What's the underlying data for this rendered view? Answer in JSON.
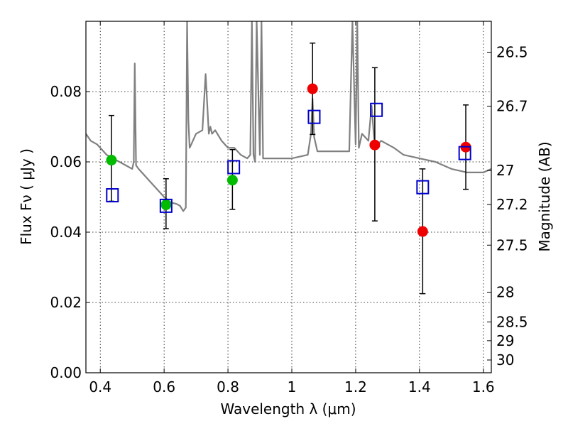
{
  "chart_data": {
    "type": "scatter",
    "xlabel": "Wavelength  λ (μm)",
    "ylabel": "Flux  Fν  ( μJy )",
    "right_ylabel": "Magnitude (AB)",
    "xlim": [
      0.355,
      1.625
    ],
    "ylim": [
      0.0,
      0.1
    ],
    "x_ticks": [
      "0.4",
      "0.6",
      "0.8",
      "1",
      "1.2",
      "1.4",
      "1.6"
    ],
    "y_ticks": [
      "0.00",
      "0.02",
      "0.04",
      "0.06",
      "0.08"
    ],
    "right_ticks": [
      "26.5",
      "26.7",
      "27",
      "27.2",
      "27.5",
      "28",
      "28.5",
      "29",
      "30"
    ],
    "grid": true,
    "colors": {
      "model": "#808080",
      "observed_hst": "#00bb00",
      "observed_ir": "#ee0000",
      "model_photometry": "#0000cc",
      "errorbar": "#000000"
    },
    "series": [
      {
        "marker": "circle-green",
        "x": [
          0.435,
          0.606,
          0.814
        ],
        "y": [
          0.0605,
          0.0478,
          0.0548
        ],
        "yerr_low": [
          0.0488,
          0.041,
          0.0465
        ],
        "yerr_high": [
          0.0732,
          0.0552,
          0.0635
        ]
      },
      {
        "marker": "circle-red",
        "x": [
          1.065,
          1.26,
          1.41,
          1.545
        ],
        "y": [
          0.0808,
          0.0648,
          0.0402,
          0.0642
        ],
        "yerr_low": [
          0.0678,
          0.0432,
          0.0225,
          0.0522
        ],
        "yerr_high": [
          0.0938,
          0.0868,
          0.058,
          0.0762
        ]
      },
      {
        "marker": "square-blue",
        "x": [
          0.438,
          0.606,
          0.818,
          1.07,
          1.265,
          1.41,
          1.542
        ],
        "y": [
          0.0505,
          0.0475,
          0.0585,
          0.0728,
          0.0748,
          0.0528,
          0.0625
        ]
      },
      {
        "marker": "line-gray",
        "x": [
          0.355,
          0.37,
          0.39,
          0.41,
          0.42,
          0.44,
          0.46,
          0.48,
          0.5,
          0.505,
          0.508,
          0.512,
          0.52,
          0.55,
          0.58,
          0.6,
          0.62,
          0.64,
          0.65,
          0.66,
          0.668,
          0.672,
          0.676,
          0.68,
          0.685,
          0.7,
          0.72,
          0.73,
          0.74,
          0.745,
          0.75,
          0.76,
          0.78,
          0.8,
          0.82,
          0.84,
          0.86,
          0.87,
          0.875,
          0.88,
          0.885,
          0.89,
          0.9,
          0.905,
          0.91,
          0.95,
          1.0,
          1.05,
          1.06,
          1.065,
          1.07,
          1.08,
          1.1,
          1.15,
          1.18,
          1.19,
          1.2,
          1.205,
          1.21,
          1.22,
          1.24,
          1.25,
          1.26,
          1.28,
          1.3,
          1.32,
          1.35,
          1.4,
          1.45,
          1.5,
          1.55,
          1.6,
          1.625
        ],
        "y": [
          0.068,
          0.066,
          0.065,
          0.063,
          0.062,
          0.061,
          0.06,
          0.059,
          0.058,
          0.06,
          0.088,
          0.059,
          0.058,
          0.055,
          0.052,
          0.05,
          0.0485,
          0.048,
          0.0475,
          0.046,
          0.047,
          0.1,
          0.072,
          0.064,
          0.065,
          0.068,
          0.069,
          0.085,
          0.068,
          0.07,
          0.068,
          0.069,
          0.066,
          0.064,
          0.064,
          0.062,
          0.061,
          0.062,
          0.1,
          0.062,
          0.06,
          0.1,
          0.062,
          0.1,
          0.061,
          0.061,
          0.061,
          0.062,
          0.068,
          0.078,
          0.067,
          0.063,
          0.063,
          0.063,
          0.063,
          0.1,
          0.065,
          0.1,
          0.064,
          0.068,
          0.066,
          0.076,
          0.064,
          0.066,
          0.065,
          0.064,
          0.062,
          0.061,
          0.06,
          0.058,
          0.057,
          0.057,
          0.058
        ]
      }
    ]
  }
}
